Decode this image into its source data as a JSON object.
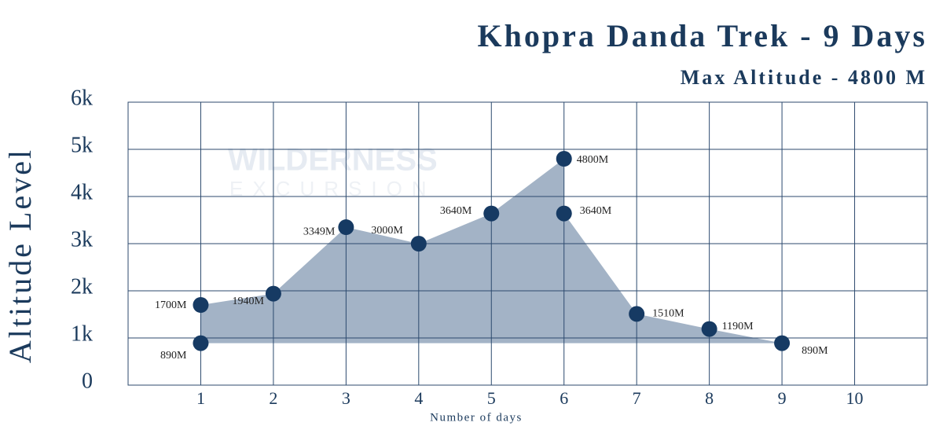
{
  "chart_data": {
    "type": "area",
    "title": "Khopra Danda Trek - 9 Days",
    "subtitle": "Max Altitude - 4800 M",
    "ylabel": "Altitude Level",
    "xlabel": "Number of days",
    "watermark": [
      "WILDERNESS",
      "EXCURSION"
    ],
    "x": [
      1,
      1,
      2,
      3,
      4,
      5,
      6,
      6,
      7,
      8,
      9
    ],
    "values": [
      890,
      1700,
      1940,
      3349,
      3000,
      3640,
      4800,
      3640,
      1510,
      1190,
      890
    ],
    "value_labels": [
      "890M",
      "1700M",
      "1940M",
      "3349M",
      "3000M",
      "3640M",
      "4800M",
      "3640M",
      "1510M",
      "1190M",
      "890M"
    ],
    "color": "#163a63",
    "fill": "#a3b3c6",
    "xlim": [
      0,
      11
    ],
    "xticks": [
      1,
      2,
      3,
      4,
      5,
      6,
      7,
      8,
      9,
      10
    ],
    "ylim": [
      0,
      6000
    ],
    "yticks": [
      0,
      {
        "value": 1000,
        "label": "1k"
      },
      {
        "value": 2000,
        "label": "2k"
      },
      {
        "value": 3000,
        "label": "3k"
      },
      {
        "value": 4000,
        "label": "4k"
      },
      {
        "value": 5000,
        "label": "5k"
      },
      {
        "value": 6000,
        "label": "6k"
      }
    ],
    "grid": true
  }
}
